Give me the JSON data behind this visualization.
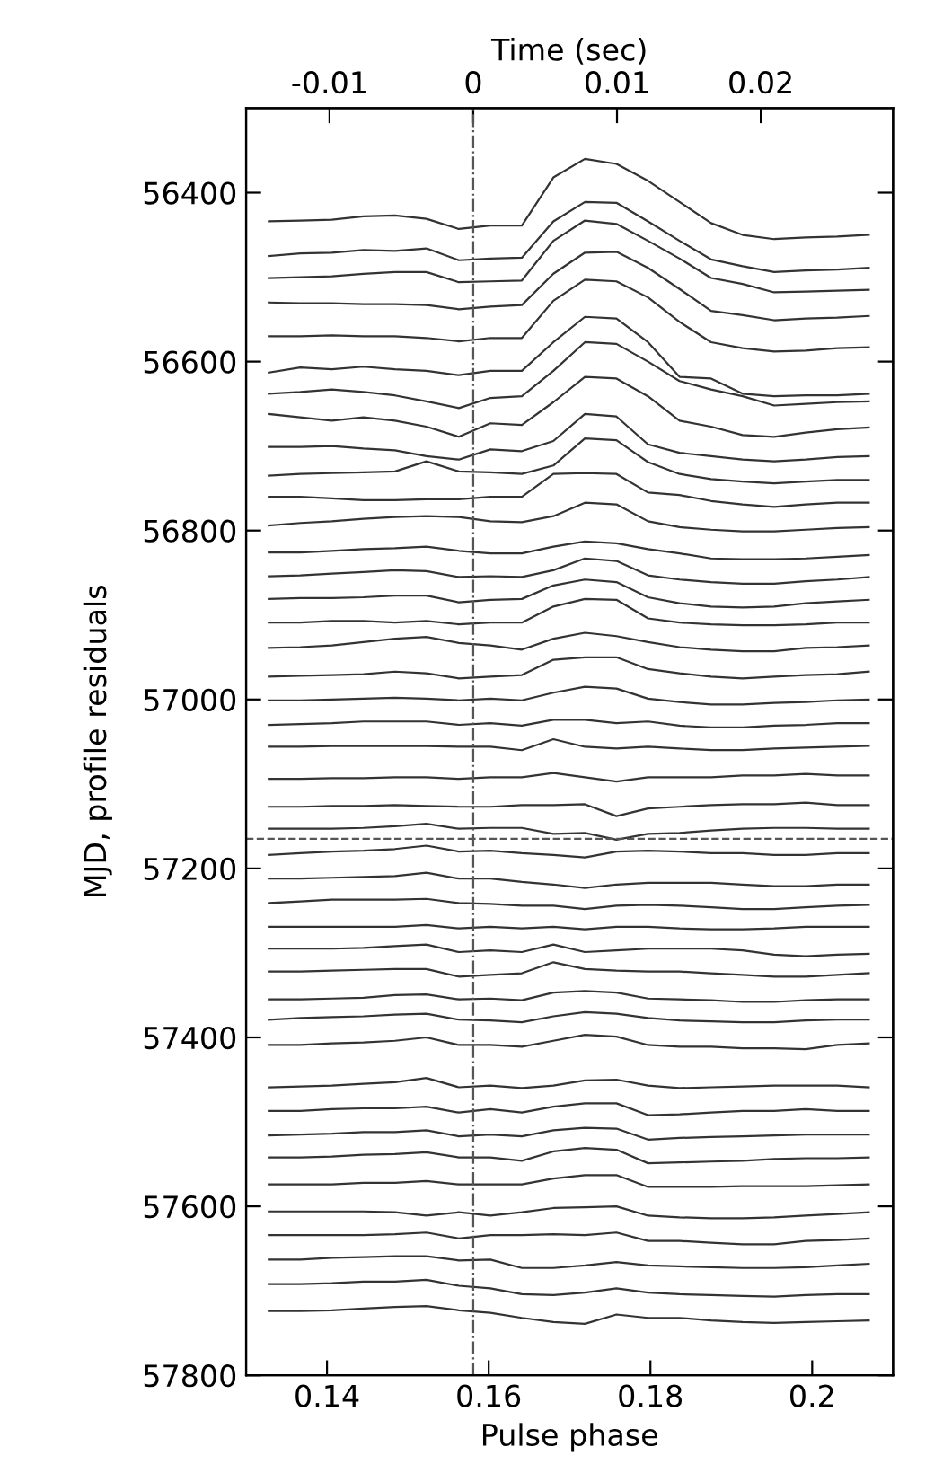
{
  "chart_data": {
    "type": "line",
    "xlabel": "Pulse phase",
    "ylabel": "MJD, profile residuals",
    "x2label": "Time (sec)",
    "x": [
      0.1328,
      0.1367,
      0.1406,
      0.1445,
      0.1484,
      0.1523,
      0.1563,
      0.1602,
      0.1641,
      0.168,
      0.1719,
      0.1758,
      0.1797,
      0.1836,
      0.1875,
      0.1914,
      0.1953,
      0.1992,
      0.2031,
      0.207
    ],
    "xlim": [
      0.13,
      0.21
    ],
    "xticks": [
      0.14,
      0.16,
      0.18,
      0.2
    ],
    "x2lim": [
      -0.0158,
      0.0292
    ],
    "x2ticks": [
      -0.01,
      0,
      0.01,
      0.02
    ],
    "ylim": [
      57800,
      56300
    ],
    "yticks": [
      56400,
      56600,
      56800,
      57000,
      57200,
      57400,
      57600,
      57800
    ],
    "grid": false,
    "legend": false,
    "line_style": "solid",
    "marker": "none",
    "ref_lines": [
      {
        "axis": "x2",
        "value": 0,
        "color": "#555555",
        "line_style": "dashdot"
      },
      {
        "axis": "y",
        "value": 57165,
        "color": "#555555",
        "line_style": "dashed"
      }
    ],
    "series": [
      {
        "color": "#333333",
        "values": [
          56434,
          56433,
          56432,
          56428,
          56427,
          56431,
          56443,
          56439,
          56439,
          56382,
          56360,
          56366,
          56386,
          56411,
          56436,
          56450,
          56455,
          56453,
          56452,
          56450
        ]
      },
      {
        "color": "#333333",
        "values": [
          56475,
          56472,
          56471,
          56468,
          56469,
          56466,
          56480,
          56478,
          56477,
          56434,
          56411,
          56412,
          56434,
          56457,
          56479,
          56487,
          56494,
          56492,
          56491,
          56489
        ]
      },
      {
        "color": "#333333",
        "values": [
          56501,
          56500,
          56499,
          56496,
          56494,
          56494,
          56506,
          56505,
          56504,
          56457,
          56433,
          56437,
          56457,
          56478,
          56501,
          56508,
          56518,
          56517,
          56516,
          56515
        ]
      },
      {
        "color": "#333333",
        "values": [
          56530,
          56531,
          56531,
          56532,
          56532,
          56533,
          56538,
          56535,
          56533,
          56496,
          56471,
          56470,
          56489,
          56514,
          56540,
          56545,
          56551,
          56549,
          56548,
          56546
        ]
      },
      {
        "color": "#333333",
        "values": [
          56570,
          56570,
          56569,
          56570,
          56570,
          56572,
          56576,
          56572,
          56572,
          56528,
          56503,
          56505,
          56524,
          56553,
          56577,
          56584,
          56588,
          56587,
          56584,
          56583
        ]
      },
      {
        "color": "#333333",
        "values": [
          56613,
          56607,
          56609,
          56606,
          56609,
          56611,
          56616,
          56611,
          56611,
          56577,
          56547,
          56549,
          56577,
          56618,
          56620,
          56638,
          56641,
          56640,
          56640,
          56638
        ]
      },
      {
        "color": "#333333",
        "values": [
          56638,
          56636,
          56633,
          56636,
          56640,
          56647,
          56655,
          56643,
          56641,
          56611,
          56577,
          56579,
          56600,
          56623,
          56633,
          56641,
          56652,
          56650,
          56648,
          56647
        ]
      },
      {
        "color": "#333333",
        "values": [
          56662,
          56666,
          56670,
          56666,
          56670,
          56677,
          56689,
          56673,
          56675,
          56648,
          56618,
          56620,
          56641,
          56670,
          56677,
          56687,
          56689,
          56684,
          56680,
          56678
        ]
      },
      {
        "color": "#333333",
        "values": [
          56701,
          56701,
          56700,
          56703,
          56705,
          56712,
          56716,
          56704,
          56706,
          56694,
          56662,
          56665,
          56698,
          56708,
          56712,
          56716,
          56718,
          56716,
          56713,
          56712
        ]
      },
      {
        "color": "#333333",
        "values": [
          56735,
          56733,
          56732,
          56731,
          56730,
          56718,
          56730,
          56731,
          56733,
          56723,
          56691,
          56693,
          56719,
          56733,
          56739,
          56742,
          56744,
          56742,
          56740,
          56740
        ]
      },
      {
        "color": "#333333",
        "values": [
          56760,
          56760,
          56762,
          56764,
          56764,
          56763,
          56763,
          56760,
          56760,
          56733,
          56732,
          56733,
          56755,
          56758,
          56765,
          56769,
          56772,
          56769,
          56767,
          56767
        ]
      },
      {
        "color": "#333333",
        "values": [
          56794,
          56791,
          56789,
          56786,
          56784,
          56783,
          56784,
          56789,
          56790,
          56783,
          56767,
          56769,
          56789,
          56796,
          56799,
          56801,
          56801,
          56799,
          56797,
          56796
        ]
      },
      {
        "color": "#333333",
        "values": [
          56826,
          56826,
          56824,
          56822,
          56821,
          56819,
          56824,
          56827,
          56827,
          56819,
          56813,
          56815,
          56822,
          56827,
          56833,
          56834,
          56834,
          56833,
          56831,
          56829
        ]
      },
      {
        "color": "#333333",
        "values": [
          56854,
          56853,
          56851,
          56849,
          56847,
          56848,
          56855,
          56854,
          56855,
          56847,
          56833,
          56836,
          56853,
          56858,
          56861,
          56863,
          56863,
          56860,
          56858,
          56855
        ]
      },
      {
        "color": "#333333",
        "values": [
          56881,
          56880,
          56880,
          56879,
          56877,
          56877,
          56885,
          56882,
          56881,
          56865,
          56858,
          56861,
          56879,
          56886,
          56890,
          56891,
          56890,
          56886,
          56884,
          56882
        ]
      },
      {
        "color": "#333333",
        "values": [
          56909,
          56909,
          56907,
          56907,
          56909,
          56907,
          56911,
          56909,
          56909,
          56890,
          56881,
          56882,
          56904,
          56909,
          56911,
          56912,
          56912,
          56911,
          56909,
          56909
        ]
      },
      {
        "color": "#333333",
        "values": [
          56939,
          56938,
          56936,
          56932,
          56928,
          56926,
          56933,
          56936,
          56941,
          56928,
          56921,
          56925,
          56932,
          56938,
          56941,
          56943,
          56943,
          56939,
          56938,
          56936
        ]
      },
      {
        "color": "#333333",
        "values": [
          56973,
          56972,
          56971,
          56970,
          56967,
          56969,
          56975,
          56973,
          56971,
          56953,
          56950,
          56950,
          56964,
          56969,
          56973,
          56975,
          56973,
          56971,
          56970,
          56967
        ]
      },
      {
        "color": "#333333",
        "values": [
          57001,
          57001,
          57000,
          56999,
          56998,
          56999,
          57001,
          56999,
          57001,
          56992,
          56985,
          56987,
          56999,
          57003,
          57006,
          57006,
          57004,
          57003,
          57001,
          57000
        ]
      },
      {
        "color": "#333333",
        "values": [
          57030,
          57029,
          57028,
          57026,
          57026,
          57026,
          57030,
          57028,
          57031,
          57024,
          57024,
          57028,
          57026,
          57031,
          57033,
          57033,
          57031,
          57030,
          57028,
          57028
        ]
      },
      {
        "color": "#333333",
        "values": [
          57056,
          57056,
          57055,
          57055,
          57055,
          57055,
          57056,
          57056,
          57060,
          57047,
          57056,
          57058,
          57056,
          57058,
          57060,
          57060,
          57058,
          57057,
          57056,
          57055
        ]
      },
      {
        "color": "#333333",
        "values": [
          57094,
          57094,
          57093,
          57093,
          57092,
          57092,
          57094,
          57092,
          57092,
          57087,
          57092,
          57097,
          57092,
          57092,
          57092,
          57090,
          57090,
          57088,
          57090,
          57090
        ]
      },
      {
        "color": "#333333",
        "values": [
          57127,
          57127,
          57126,
          57126,
          57125,
          57126,
          57127,
          57127,
          57125,
          57125,
          57124,
          57138,
          57129,
          57127,
          57125,
          57124,
          57124,
          57122,
          57125,
          57125
        ]
      },
      {
        "color": "#333333",
        "values": [
          57153,
          57153,
          57153,
          57152,
          57150,
          57147,
          57153,
          57152,
          57152,
          57159,
          57158,
          57166,
          57159,
          57158,
          57155,
          57153,
          57152,
          57152,
          57153,
          57153
        ]
      },
      {
        "color": "#333333",
        "values": [
          57184,
          57182,
          57180,
          57179,
          57177,
          57173,
          57180,
          57179,
          57182,
          57184,
          57187,
          57180,
          57179,
          57180,
          57182,
          57182,
          57184,
          57184,
          57182,
          57182
        ]
      },
      {
        "color": "#333333",
        "values": [
          57212,
          57212,
          57211,
          57210,
          57209,
          57205,
          57212,
          57212,
          57216,
          57219,
          57223,
          57219,
          57217,
          57217,
          57217,
          57219,
          57221,
          57221,
          57219,
          57219
        ]
      },
      {
        "color": "#333333",
        "values": [
          57241,
          57239,
          57237,
          57237,
          57237,
          57236,
          57241,
          57242,
          57244,
          57244,
          57248,
          57244,
          57243,
          57244,
          57246,
          57248,
          57248,
          57246,
          57244,
          57243
        ]
      },
      {
        "color": "#333333",
        "values": [
          57269,
          57269,
          57269,
          57269,
          57269,
          57267,
          57271,
          57269,
          57271,
          57269,
          57272,
          57269,
          57269,
          57271,
          57272,
          57272,
          57271,
          57269,
          57269,
          57269
        ]
      },
      {
        "color": "#333333",
        "values": [
          57295,
          57295,
          57295,
          57294,
          57292,
          57290,
          57299,
          57297,
          57299,
          57290,
          57299,
          57297,
          57295,
          57295,
          57295,
          57297,
          57302,
          57304,
          57302,
          57301
        ]
      },
      {
        "color": "#333333",
        "values": [
          57322,
          57322,
          57321,
          57320,
          57319,
          57319,
          57328,
          57326,
          57324,
          57311,
          57319,
          57321,
          57322,
          57322,
          57324,
          57326,
          57328,
          57328,
          57326,
          57324
        ]
      },
      {
        "color": "#333333",
        "values": [
          57355,
          57355,
          57354,
          57353,
          57350,
          57349,
          57355,
          57354,
          57356,
          57347,
          57345,
          57347,
          57354,
          57355,
          57356,
          57358,
          57358,
          57356,
          57355,
          57355
        ]
      },
      {
        "color": "#333333",
        "values": [
          57379,
          57377,
          57376,
          57375,
          57373,
          57372,
          57379,
          57380,
          57382,
          57375,
          57370,
          57372,
          57377,
          57380,
          57381,
          57382,
          57382,
          57380,
          57379,
          57379
        ]
      },
      {
        "color": "#333333",
        "values": [
          57409,
          57409,
          57407,
          57406,
          57404,
          57400,
          57409,
          57409,
          57411,
          57404,
          57397,
          57399,
          57409,
          57411,
          57411,
          57413,
          57413,
          57414,
          57409,
          57407
        ]
      },
      {
        "color": "#333333",
        "values": [
          57459,
          57458,
          57457,
          57455,
          57453,
          57448,
          57459,
          57457,
          57460,
          57457,
          57451,
          57450,
          57457,
          57460,
          57459,
          57458,
          57457,
          57457,
          57457,
          57459
        ]
      },
      {
        "color": "#333333",
        "values": [
          57487,
          57487,
          57485,
          57484,
          57484,
          57482,
          57489,
          57485,
          57489,
          57482,
          57478,
          57478,
          57492,
          57491,
          57489,
          57487,
          57487,
          57485,
          57487,
          57487
        ]
      },
      {
        "color": "#333333",
        "values": [
          57516,
          57515,
          57514,
          57512,
          57512,
          57510,
          57517,
          57515,
          57517,
          57510,
          57507,
          57508,
          57521,
          57519,
          57518,
          57517,
          57516,
          57515,
          57515,
          57515
        ]
      },
      {
        "color": "#333333",
        "values": [
          57542,
          57542,
          57541,
          57539,
          57538,
          57536,
          57542,
          57542,
          57546,
          57535,
          57531,
          57533,
          57549,
          57548,
          57547,
          57546,
          57544,
          57543,
          57543,
          57542
        ]
      },
      {
        "color": "#333333",
        "values": [
          57574,
          57574,
          57574,
          57572,
          57572,
          57570,
          57574,
          57574,
          57574,
          57567,
          57563,
          57563,
          57577,
          57577,
          57577,
          57576,
          57576,
          57576,
          57575,
          57574
        ]
      },
      {
        "color": "#333333",
        "values": [
          57606,
          57606,
          57606,
          57606,
          57607,
          57611,
          57607,
          57611,
          57607,
          57602,
          57601,
          57600,
          57611,
          57613,
          57614,
          57614,
          57613,
          57611,
          57609,
          57607
        ]
      },
      {
        "color": "#333333",
        "values": [
          57634,
          57634,
          57634,
          57634,
          57633,
          57631,
          57638,
          57634,
          57634,
          57633,
          57634,
          57631,
          57641,
          57641,
          57643,
          57645,
          57645,
          57641,
          57640,
          57638
        ]
      },
      {
        "color": "#333333",
        "values": [
          57663,
          57663,
          57661,
          57660,
          57659,
          57659,
          57664,
          57663,
          57673,
          57673,
          57670,
          57666,
          57670,
          57671,
          57672,
          57673,
          57673,
          57672,
          57670,
          57668
        ]
      },
      {
        "color": "#333333",
        "values": [
          57692,
          57692,
          57691,
          57689,
          57689,
          57687,
          57694,
          57697,
          57704,
          57705,
          57702,
          57697,
          57702,
          57704,
          57705,
          57706,
          57707,
          57705,
          57704,
          57704
        ]
      },
      {
        "color": "#333333",
        "values": [
          57724,
          57724,
          57723,
          57721,
          57719,
          57718,
          57723,
          57726,
          57732,
          57737,
          57739,
          57728,
          57732,
          57732,
          57735,
          57737,
          57738,
          57737,
          57736,
          57735
        ]
      }
    ]
  }
}
